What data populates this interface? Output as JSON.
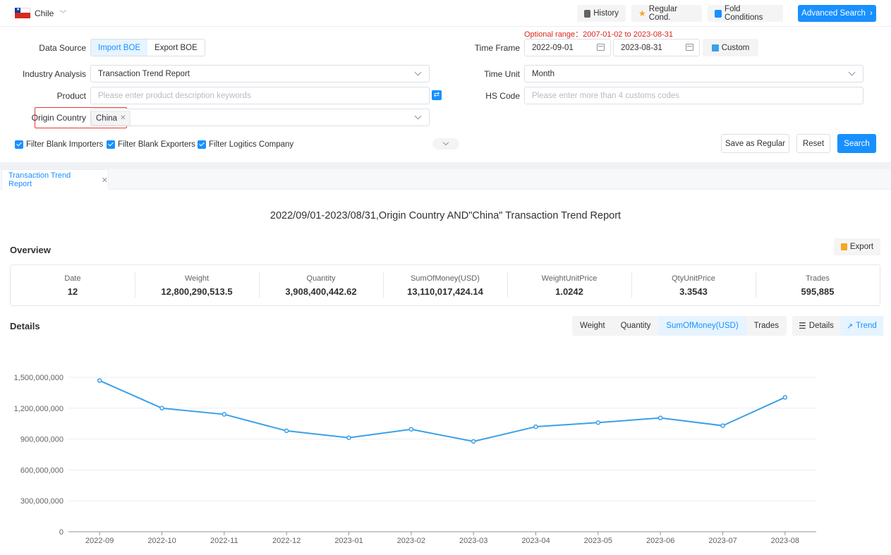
{
  "topbar": {
    "country": "Chile",
    "history": "History",
    "regular_cond": "Regular Cond.",
    "fold_conditions": "Fold Conditions",
    "advanced_search": "Advanced Search"
  },
  "filters": {
    "optional_range": "Optional range：2007-01-02 to 2023-08-31",
    "data_source_label": "Data Source",
    "data_source_options": [
      "Import BOE",
      "Export BOE"
    ],
    "data_source_selected": "Import BOE",
    "time_frame_label": "Time Frame",
    "time_start": "2022-09-01",
    "time_end": "2023-08-31",
    "custom": "Custom",
    "industry_label": "Industry Analysis",
    "industry_value": "Transaction Trend Report",
    "time_unit_label": "Time Unit",
    "time_unit_value": "Month",
    "product_label": "Product",
    "product_placeholder": "Please enter product description keywords",
    "hs_label": "HS Code",
    "hs_placeholder": "Please enter more than 4 customs codes",
    "origin_label": "Origin Country",
    "origin_tag": "China",
    "checkboxes": [
      "Filter Blank Importers",
      "Filter Blank Exporters",
      "Filter Logitics Company"
    ],
    "save_regular": "Save as Regular",
    "reset": "Reset",
    "search": "Search"
  },
  "tabs": {
    "report_tab": "Transaction Trend Report"
  },
  "report": {
    "title": "2022/09/01-2023/08/31,Origin Country AND\"China\" Transaction Trend Report",
    "overview_title": "Overview",
    "export": "Export",
    "overview": [
      {
        "label": "Date",
        "value": "12"
      },
      {
        "label": "Weight",
        "value": "12,800,290,513.5"
      },
      {
        "label": "Quantity",
        "value": "3,908,400,442.62"
      },
      {
        "label": "SumOfMoney(USD)",
        "value": "13,110,017,424.14"
      },
      {
        "label": "WeightUnitPrice",
        "value": "1.0242"
      },
      {
        "label": "QtyUnitPrice",
        "value": "3.3543"
      },
      {
        "label": "Trades",
        "value": "595,885"
      }
    ],
    "details_title": "Details",
    "metric_tabs": [
      "Weight",
      "Quantity",
      "SumOfMoney(USD)",
      "Trades"
    ],
    "metric_selected": "SumOfMoney(USD)",
    "view_tabs": [
      "Details",
      "Trend"
    ],
    "view_selected": "Trend"
  },
  "colors": {
    "accent": "#1890ff",
    "line": "#3aa0e8",
    "danger": "#d9261c"
  },
  "chart_data": {
    "type": "line",
    "categories": [
      "2022-09",
      "2022-10",
      "2022-11",
      "2022-12",
      "2023-01",
      "2023-02",
      "2023-03",
      "2023-04",
      "2023-05",
      "2023-06",
      "2023-07",
      "2023-08"
    ],
    "series": [
      {
        "values": [
          1468000000,
          1200000000,
          1140000000,
          980000000,
          913000000,
          995000000,
          877000000,
          1020000000,
          1060000000,
          1105000000,
          1030000000,
          1305000000
        ]
      }
    ],
    "y_ticks": [
      "1,500,000,000",
      "1,200,000,000",
      "900,000,000",
      "600,000,000",
      "300,000,000",
      "0"
    ],
    "ylim": [
      0,
      1500000000
    ],
    "grid": true,
    "title": "",
    "xlabel": "",
    "ylabel": ""
  }
}
